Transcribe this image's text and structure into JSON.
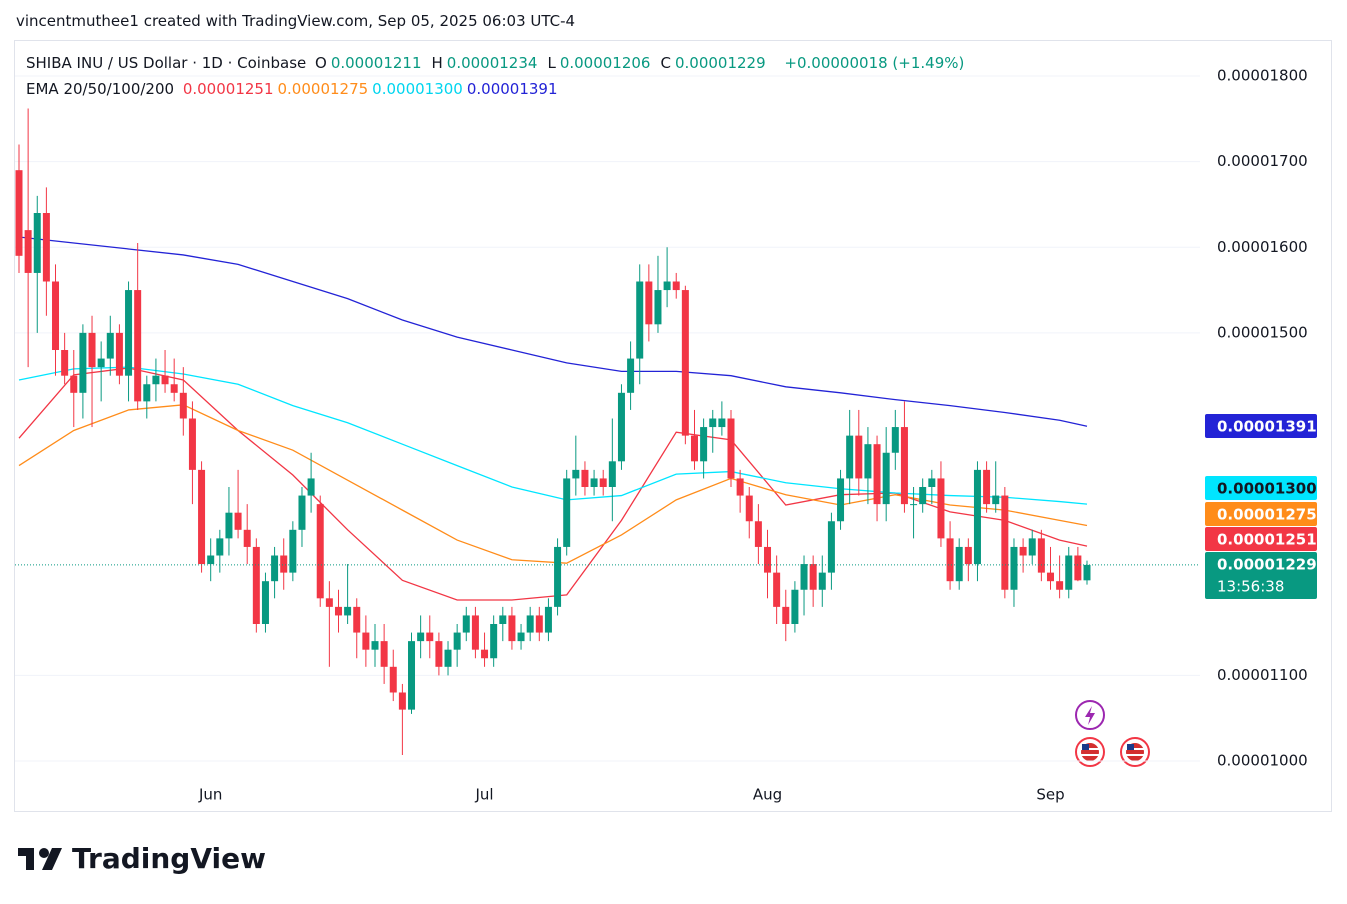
{
  "attribution": "vincentmuthee1 created with TradingView.com, Sep 05, 2025 06:03 UTC-4",
  "logo": "TradingView",
  "chart_data": {
    "type": "candlestick",
    "title": "SHIBA INU / US Dollar · 1D · Coinbase",
    "ohlc_labels": [
      "O",
      "H",
      "L",
      "C"
    ],
    "change": "+0.00000018 (+1.49%)",
    "indicator": "EMA 20/50/100/200",
    "countdown": "13:56:38",
    "up_color": "#089981",
    "down_color": "#f23645",
    "grid": true,
    "categories": [
      null,
      null,
      null,
      null,
      null,
      null,
      null,
      null,
      null,
      null,
      null,
      null,
      null,
      null,
      null,
      null,
      null,
      null,
      null,
      null,
      null,
      "Jun",
      null,
      null,
      null,
      null,
      null,
      null,
      null,
      null,
      null,
      null,
      null,
      null,
      null,
      null,
      null,
      null,
      null,
      null,
      null,
      null,
      null,
      null,
      null,
      null,
      null,
      null,
      null,
      null,
      null,
      "Jul",
      null,
      null,
      null,
      null,
      null,
      null,
      null,
      null,
      null,
      null,
      null,
      null,
      null,
      null,
      null,
      null,
      null,
      null,
      null,
      null,
      null,
      null,
      null,
      null,
      null,
      null,
      null,
      null,
      null,
      null,
      "Aug",
      null,
      null,
      null,
      null,
      null,
      null,
      null,
      null,
      null,
      null,
      null,
      null,
      null,
      null,
      null,
      null,
      null,
      null,
      null,
      null,
      null,
      null,
      null,
      null,
      null,
      null,
      null,
      null,
      null,
      null,
      "Sep",
      null,
      null,
      null,
      null
    ],
    "open": [
      1.69e-05,
      1.62e-05,
      1.57e-05,
      1.64e-05,
      1.56e-05,
      1.48e-05,
      1.45e-05,
      1.43e-05,
      1.5e-05,
      1.46e-05,
      1.47e-05,
      1.5e-05,
      1.45e-05,
      1.55e-05,
      1.42e-05,
      1.44e-05,
      1.45e-05,
      1.44e-05,
      1.43e-05,
      1.4e-05,
      1.34e-05,
      1.23e-05,
      1.24e-05,
      1.26e-05,
      1.29e-05,
      1.27e-05,
      1.25e-05,
      1.16e-05,
      1.21e-05,
      1.24e-05,
      1.22e-05,
      1.27e-05,
      1.31e-05,
      1.3e-05,
      1.19e-05,
      1.18e-05,
      1.17e-05,
      1.18e-05,
      1.15e-05,
      1.13e-05,
      1.14e-05,
      1.11e-05,
      1.08e-05,
      1.06e-05,
      1.14e-05,
      1.15e-05,
      1.14e-05,
      1.11e-05,
      1.13e-05,
      1.15e-05,
      1.17e-05,
      1.13e-05,
      1.12e-05,
      1.16e-05,
      1.17e-05,
      1.14e-05,
      1.15e-05,
      1.17e-05,
      1.15e-05,
      1.18e-05,
      1.25e-05,
      1.33e-05,
      1.34e-05,
      1.32e-05,
      1.33e-05,
      1.32e-05,
      1.35e-05,
      1.43e-05,
      1.47e-05,
      1.56e-05,
      1.51e-05,
      1.55e-05,
      1.56e-05,
      1.55e-05,
      1.38e-05,
      1.35e-05,
      1.39e-05,
      1.39e-05,
      1.4e-05,
      1.33e-05,
      1.31e-05,
      1.28e-05,
      1.25e-05,
      1.22e-05,
      1.18e-05,
      1.16e-05,
      1.2e-05,
      1.23e-05,
      1.2e-05,
      1.22e-05,
      1.28e-05,
      1.33e-05,
      1.38e-05,
      1.33e-05,
      1.37e-05,
      1.3e-05,
      1.36e-05,
      1.39e-05,
      1.3e-05,
      1.3e-05,
      1.32e-05,
      1.33e-05,
      1.26e-05,
      1.21e-05,
      1.25e-05,
      1.23e-05,
      1.34e-05,
      1.3e-05,
      1.31e-05,
      1.2e-05,
      1.25e-05,
      1.24e-05,
      1.26e-05,
      1.22e-05,
      1.21e-05,
      1.2e-05,
      1.24e-05,
      1.211e-05
    ],
    "high": [
      1.72e-05,
      1.762e-05,
      1.66e-05,
      1.67e-05,
      1.58e-05,
      1.5e-05,
      1.48e-05,
      1.51e-05,
      1.52e-05,
      1.49e-05,
      1.52e-05,
      1.51e-05,
      1.56e-05,
      1.605e-05,
      1.45e-05,
      1.47e-05,
      1.48e-05,
      1.47e-05,
      1.46e-05,
      1.42e-05,
      1.35e-05,
      1.26e-05,
      1.27e-05,
      1.32e-05,
      1.34e-05,
      1.3e-05,
      1.26e-05,
      1.22e-05,
      1.25e-05,
      1.26e-05,
      1.28e-05,
      1.32e-05,
      1.36e-05,
      1.31e-05,
      1.21e-05,
      1.2e-05,
      1.23e-05,
      1.19e-05,
      1.17e-05,
      1.16e-05,
      1.16e-05,
      1.13e-05,
      1.09e-05,
      1.15e-05,
      1.17e-05,
      1.17e-05,
      1.15e-05,
      1.14e-05,
      1.16e-05,
      1.18e-05,
      1.18e-05,
      1.15e-05,
      1.17e-05,
      1.18e-05,
      1.18e-05,
      1.16e-05,
      1.18e-05,
      1.18e-05,
      1.19e-05,
      1.26e-05,
      1.34e-05,
      1.38e-05,
      1.35e-05,
      1.34e-05,
      1.34e-05,
      1.4e-05,
      1.44e-05,
      1.49e-05,
      1.58e-05,
      1.58e-05,
      1.59e-05,
      1.6e-05,
      1.57e-05,
      1.555e-05,
      1.41e-05,
      1.4e-05,
      1.41e-05,
      1.42e-05,
      1.41e-05,
      1.34e-05,
      1.32e-05,
      1.3e-05,
      1.27e-05,
      1.24e-05,
      1.2e-05,
      1.21e-05,
      1.24e-05,
      1.24e-05,
      1.24e-05,
      1.29e-05,
      1.34e-05,
      1.41e-05,
      1.41e-05,
      1.39e-05,
      1.38e-05,
      1.39e-05,
      1.41e-05,
      1.42e-05,
      1.32e-05,
      1.33e-05,
      1.34e-05,
      1.35e-05,
      1.28e-05,
      1.26e-05,
      1.26e-05,
      1.35e-05,
      1.35e-05,
      1.35e-05,
      1.32e-05,
      1.26e-05,
      1.26e-05,
      1.27e-05,
      1.27e-05,
      1.25e-05,
      1.24e-05,
      1.25e-05,
      1.25e-05,
      1.234e-05
    ],
    "low": [
      1.57e-05,
      1.46e-05,
      1.5e-05,
      1.52e-05,
      1.45e-05,
      1.44e-05,
      1.39e-05,
      1.4e-05,
      1.39e-05,
      1.42e-05,
      1.45e-05,
      1.44e-05,
      1.42e-05,
      1.41e-05,
      1.4e-05,
      1.42e-05,
      1.43e-05,
      1.42e-05,
      1.38e-05,
      1.3e-05,
      1.22e-05,
      1.21e-05,
      1.22e-05,
      1.24e-05,
      1.26e-05,
      1.23e-05,
      1.15e-05,
      1.15e-05,
      1.19e-05,
      1.2e-05,
      1.21e-05,
      1.25e-05,
      1.29e-05,
      1.18e-05,
      1.11e-05,
      1.15e-05,
      1.16e-05,
      1.12e-05,
      1.11e-05,
      1.11e-05,
      1.09e-05,
      1.07e-05,
      1.007e-05,
      1.055e-05,
      1.12e-05,
      1.12e-05,
      1.1e-05,
      1.1e-05,
      1.11e-05,
      1.14e-05,
      1.12e-05,
      1.11e-05,
      1.11e-05,
      1.14e-05,
      1.13e-05,
      1.13e-05,
      1.14e-05,
      1.14e-05,
      1.14e-05,
      1.17e-05,
      1.24e-05,
      1.31e-05,
      1.31e-05,
      1.31e-05,
      1.31e-05,
      1.28e-05,
      1.34e-05,
      1.41e-05,
      1.44e-05,
      1.49e-05,
      1.5e-05,
      1.53e-05,
      1.54e-05,
      1.37e-05,
      1.34e-05,
      1.33e-05,
      1.36e-05,
      1.38e-05,
      1.32e-05,
      1.29e-05,
      1.26e-05,
      1.23e-05,
      1.19e-05,
      1.16e-05,
      1.14e-05,
      1.15e-05,
      1.17e-05,
      1.18e-05,
      1.18e-05,
      1.2e-05,
      1.27e-05,
      1.3e-05,
      1.31e-05,
      1.3e-05,
      1.28e-05,
      1.28e-05,
      1.34e-05,
      1.29e-05,
      1.26e-05,
      1.29e-05,
      1.3e-05,
      1.25e-05,
      1.2e-05,
      1.2e-05,
      1.21e-05,
      1.21e-05,
      1.29e-05,
      1.29e-05,
      1.19e-05,
      1.18e-05,
      1.22e-05,
      1.23e-05,
      1.21e-05,
      1.2e-05,
      1.19e-05,
      1.19e-05,
      1.21e-05,
      1.206e-05
    ],
    "close": [
      1.59e-05,
      1.57e-05,
      1.64e-05,
      1.56e-05,
      1.48e-05,
      1.45e-05,
      1.43e-05,
      1.5e-05,
      1.46e-05,
      1.47e-05,
      1.5e-05,
      1.45e-05,
      1.55e-05,
      1.42e-05,
      1.44e-05,
      1.45e-05,
      1.44e-05,
      1.43e-05,
      1.4e-05,
      1.34e-05,
      1.23e-05,
      1.24e-05,
      1.26e-05,
      1.29e-05,
      1.27e-05,
      1.25e-05,
      1.16e-05,
      1.21e-05,
      1.24e-05,
      1.22e-05,
      1.27e-05,
      1.31e-05,
      1.33e-05,
      1.19e-05,
      1.18e-05,
      1.17e-05,
      1.18e-05,
      1.15e-05,
      1.13e-05,
      1.14e-05,
      1.11e-05,
      1.08e-05,
      1.06e-05,
      1.14e-05,
      1.15e-05,
      1.14e-05,
      1.11e-05,
      1.13e-05,
      1.15e-05,
      1.17e-05,
      1.13e-05,
      1.12e-05,
      1.16e-05,
      1.17e-05,
      1.14e-05,
      1.15e-05,
      1.17e-05,
      1.15e-05,
      1.18e-05,
      1.25e-05,
      1.33e-05,
      1.34e-05,
      1.32e-05,
      1.33e-05,
      1.32e-05,
      1.35e-05,
      1.43e-05,
      1.47e-05,
      1.56e-05,
      1.51e-05,
      1.55e-05,
      1.56e-05,
      1.55e-05,
      1.38e-05,
      1.35e-05,
      1.39e-05,
      1.4e-05,
      1.4e-05,
      1.33e-05,
      1.31e-05,
      1.28e-05,
      1.25e-05,
      1.22e-05,
      1.18e-05,
      1.16e-05,
      1.2e-05,
      1.23e-05,
      1.2e-05,
      1.22e-05,
      1.28e-05,
      1.33e-05,
      1.38e-05,
      1.33e-05,
      1.37e-05,
      1.3e-05,
      1.36e-05,
      1.39e-05,
      1.3e-05,
      1.3e-05,
      1.32e-05,
      1.33e-05,
      1.26e-05,
      1.21e-05,
      1.25e-05,
      1.23e-05,
      1.34e-05,
      1.3e-05,
      1.31e-05,
      1.2e-05,
      1.25e-05,
      1.24e-05,
      1.26e-05,
      1.22e-05,
      1.21e-05,
      1.2e-05,
      1.24e-05,
      1.211e-05,
      1.229e-05
    ],
    "series": [
      {
        "name": "EMA 20",
        "color": "#f23645",
        "last_label": "0.00001251",
        "x": [
          0,
          6,
          12,
          18,
          24,
          30,
          36,
          42,
          48,
          54,
          60,
          66,
          72,
          78,
          84,
          90,
          96,
          102,
          108,
          114,
          117
        ],
        "values": [
          1.377e-05,
          1.451e-05,
          1.459e-05,
          1.445e-05,
          1.386e-05,
          1.334e-05,
          1.27e-05,
          1.211e-05,
          1.188e-05,
          1.188e-05,
          1.194e-05,
          1.281e-05,
          1.384e-05,
          1.375e-05,
          1.299e-05,
          1.311e-05,
          1.313e-05,
          1.291e-05,
          1.281e-05,
          1.258e-05,
          1.251e-05
        ]
      },
      {
        "name": "EMA 50",
        "color": "#ff8c1a",
        "last_label": "0.00001275",
        "x": [
          0,
          6,
          12,
          18,
          24,
          30,
          36,
          42,
          48,
          54,
          60,
          66,
          72,
          78,
          84,
          90,
          96,
          102,
          108,
          114,
          117
        ],
        "values": [
          1.345e-05,
          1.386e-05,
          1.41e-05,
          1.416e-05,
          1.386e-05,
          1.363e-05,
          1.328e-05,
          1.293e-05,
          1.258e-05,
          1.235e-05,
          1.231e-05,
          1.264e-05,
          1.305e-05,
          1.33e-05,
          1.311e-05,
          1.299e-05,
          1.311e-05,
          1.299e-05,
          1.293e-05,
          1.281e-05,
          1.275e-05
        ]
      },
      {
        "name": "EMA 100",
        "color": "#00e5ff",
        "last_label": "0.00001300",
        "x": [
          0,
          6,
          12,
          18,
          24,
          30,
          36,
          42,
          48,
          54,
          60,
          66,
          72,
          78,
          84,
          90,
          96,
          102,
          108,
          114,
          117
        ],
        "values": [
          1.445e-05,
          1.458e-05,
          1.46e-05,
          1.452e-05,
          1.44e-05,
          1.415e-05,
          1.395e-05,
          1.37e-05,
          1.345e-05,
          1.32e-05,
          1.305e-05,
          1.31e-05,
          1.335e-05,
          1.338e-05,
          1.325e-05,
          1.318e-05,
          1.313e-05,
          1.31e-05,
          1.308e-05,
          1.303e-05,
          1.3e-05
        ]
      },
      {
        "name": "EMA 200",
        "color": "#2323d6",
        "last_label": "0.00001391",
        "x": [
          0,
          6,
          12,
          18,
          24,
          30,
          36,
          42,
          48,
          54,
          60,
          66,
          72,
          78,
          84,
          90,
          96,
          102,
          108,
          114,
          117
        ],
        "values": [
          1.612e-05,
          1.605e-05,
          1.598e-05,
          1.591e-05,
          1.58e-05,
          1.56e-05,
          1.54e-05,
          1.515e-05,
          1.495e-05,
          1.48e-05,
          1.465e-05,
          1.455e-05,
          1.455e-05,
          1.45e-05,
          1.437e-05,
          1.43e-05,
          1.422e-05,
          1.415e-05,
          1.407e-05,
          1.398e-05,
          1.391e-05
        ]
      }
    ],
    "ylim": [
      9.6e-06,
      1.81e-05
    ],
    "yticks": [
      {
        "value": 1.8e-05,
        "label": "0.00001800"
      },
      {
        "value": 1.7e-05,
        "label": "0.00001700"
      },
      {
        "value": 1.6e-05,
        "label": "0.00001600"
      },
      {
        "value": 1.5e-05,
        "label": "0.00001500"
      },
      {
        "value": 1.1e-05,
        "label": "0.00001100"
      },
      {
        "value": 1e-05,
        "label": "0.00001000"
      }
    ]
  }
}
